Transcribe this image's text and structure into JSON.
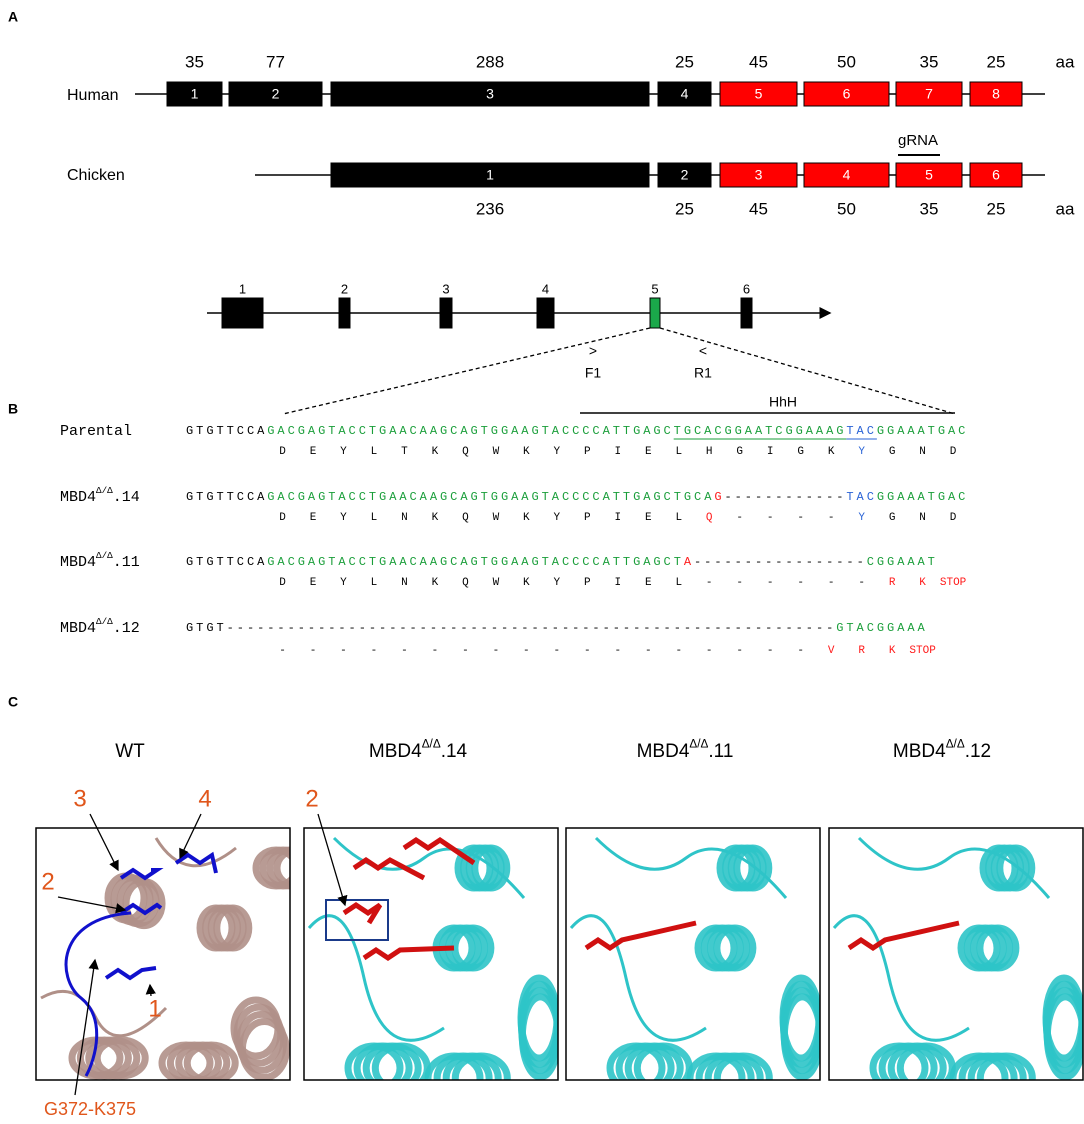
{
  "panel_labels": [
    "A",
    "B",
    "C"
  ],
  "exon_structure": {
    "unit": "aa",
    "human": {
      "label": "Human",
      "exons": [
        {
          "number": "1",
          "length": 35
        },
        {
          "number": "2",
          "length": 77
        },
        {
          "number": "3",
          "length": 288
        },
        {
          "number": "4",
          "length": 25
        },
        {
          "number": "5",
          "length": 45
        },
        {
          "number": "6",
          "length": 50
        },
        {
          "number": "7",
          "length": 35
        },
        {
          "number": "8",
          "length": 25
        }
      ]
    },
    "chicken": {
      "label": "Chicken",
      "grna": "gRNA",
      "exons": [
        {
          "number": "1",
          "length": 236
        },
        {
          "number": "2",
          "length": 25
        },
        {
          "number": "3",
          "length": 45
        },
        {
          "number": "4",
          "length": 50
        },
        {
          "number": "5",
          "length": 35
        },
        {
          "number": "6",
          "length": 25
        }
      ]
    }
  },
  "gene_map": {
    "exons": [
      "1",
      "2",
      "3",
      "4",
      "5",
      "6"
    ],
    "primers": [
      {
        "arrow": ">",
        "name": "F1"
      },
      {
        "arrow": "<",
        "name": "R1"
      }
    ]
  },
  "alignment": {
    "motif": "HhH",
    "rows": [
      {
        "name": {
          "name": "Parental"
        },
        "sequence": [
          {
            "text": "GTGTTCCA",
            "color": "black"
          },
          {
            "text": "GACGAGTACCTGAACAAGCAGTGGAAGTACCCCATTGAGC",
            "color": "green"
          },
          {
            "text": "TGCACGGAATCGGAAAG",
            "color": "green",
            "underline": true
          },
          {
            "text": "TAC",
            "color": "blue",
            "underline": true
          },
          {
            "text": "GGAAATGAC",
            "color": "green"
          }
        ],
        "protein": [
          "D",
          "E",
          "Y",
          "L",
          "T",
          "K",
          "Q",
          "W",
          "K",
          "Y",
          "P",
          "I",
          "E",
          "L",
          "H",
          "G",
          "I",
          "G",
          "K",
          {
            "aa": "Y",
            "color": "blue"
          },
          "G",
          "N",
          "D"
        ]
      },
      {
        "name": {
          "name": "MBD4",
          "sup": "Δ/Δ",
          "suffix": ".14"
        },
        "sequence": [
          {
            "text": "GTGTTCCA",
            "color": "black"
          },
          {
            "text": "GACGAGTACCTGAACAAGCAGTGGAAGTACCCCATTGAGCTGCA",
            "color": "green"
          },
          {
            "text": "G",
            "color": "red"
          },
          {
            "text": "------------",
            "color": "black"
          },
          {
            "text": "TAC",
            "color": "blue"
          },
          {
            "text": "GGAAATGAC",
            "color": "green"
          }
        ],
        "protein": [
          "D",
          "E",
          "Y",
          "L",
          "N",
          "K",
          "Q",
          "W",
          "K",
          "Y",
          "P",
          "I",
          "E",
          "L",
          {
            "aa": "Q",
            "color": "red"
          },
          "-",
          "-",
          "-",
          "-",
          {
            "aa": "Y",
            "color": "blue"
          },
          "G",
          "N",
          "D"
        ]
      },
      {
        "name": {
          "name": "MBD4",
          "sup": "Δ/Δ",
          "suffix": ".11"
        },
        "sequence": [
          {
            "text": "GTGTTCCA",
            "color": "black"
          },
          {
            "text": "GACGAGTACCTGAACAAGCAGTGGAAGTACCCCATTGAGCT",
            "color": "green"
          },
          {
            "text": "A",
            "color": "red"
          },
          {
            "text": "-----------------",
            "color": "black"
          },
          {
            "text": "CGGAAAT",
            "color": "green"
          }
        ],
        "protein": [
          "D",
          "E",
          "Y",
          "L",
          "N",
          "K",
          "Q",
          "W",
          "K",
          "Y",
          "P",
          "I",
          "E",
          "L",
          "-",
          "-",
          "-",
          "-",
          "-",
          "-",
          {
            "aa": "R",
            "color": "red"
          },
          {
            "aa": "K",
            "color": "red"
          },
          {
            "aa": "STOP",
            "color": "red"
          }
        ]
      },
      {
        "name": {
          "name": "MBD4",
          "sup": "Δ/Δ",
          "suffix": ".12"
        },
        "sequence": [
          {
            "text": "GTGT",
            "color": "black"
          },
          {
            "text": "------------------------------------------------------------",
            "color": "black"
          },
          {
            "text": "GTACGGAAA",
            "color": "green"
          }
        ],
        "protein": [
          "-",
          "-",
          "-",
          "-",
          "-",
          "-",
          "-",
          "-",
          "-",
          "-",
          "-",
          "-",
          "-",
          "-",
          "-",
          "-",
          "-",
          "-",
          {
            "aa": "V",
            "color": "red"
          },
          {
            "aa": "R",
            "color": "red"
          },
          {
            "aa": "K",
            "color": "red"
          },
          {
            "aa": "STOP",
            "color": "red"
          }
        ]
      }
    ]
  },
  "structures": [
    {
      "title": {
        "name": "WT"
      },
      "annotations": [
        "3",
        "4",
        "2",
        "1",
        "G372-K375"
      ]
    },
    {
      "title": {
        "name": "MBD4",
        "sup": "Δ/Δ",
        "suffix": ".14"
      },
      "annotations": [
        "2"
      ]
    },
    {
      "title": {
        "name": "MBD4",
        "sup": "Δ/Δ",
        "suffix": ".11"
      },
      "annotations": []
    },
    {
      "title": {
        "name": "MBD4",
        "sup": "Δ/Δ",
        "suffix": ".12"
      },
      "annotations": []
    }
  ]
}
